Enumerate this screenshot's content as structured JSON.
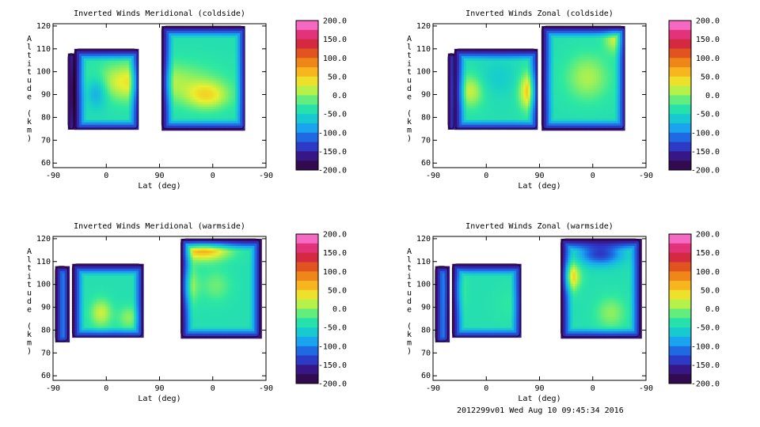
{
  "footer": "2012299v01 Wed Aug 10 09:45:34 2016",
  "chart_data": [
    {
      "type": "heatmap",
      "title": "Inverted Winds Meridional (coldside)",
      "xlabel": "Lat (deg)",
      "ylabel": "Altitude (km)",
      "x_ticks": [
        "-90",
        "0",
        "90",
        "0",
        "-90"
      ],
      "y_ticks": [
        60,
        70,
        80,
        90,
        100,
        110,
        120
      ],
      "ylim": [
        58,
        121
      ],
      "colorbar_ticks": [
        "200.0",
        "150.0",
        "100.0",
        "50.0",
        "0.0",
        "-50.0",
        "-100.0",
        "-150.0",
        "-200.0"
      ],
      "colorbar_range": [
        -200,
        200
      ],
      "blobs": [
        {
          "c": [
            0.09,
            92
          ],
          "w": [
            0.01,
            16
          ],
          "v": -170
        },
        {
          "c": [
            0.34,
            96
          ],
          "w": [
            0.17,
            8
          ],
          "v": 60
        },
        {
          "c": [
            0.56,
            96
          ],
          "w": [
            0.22,
            9
          ],
          "v": 40
        },
        {
          "c": [
            0.72,
            90
          ],
          "w": [
            0.1,
            6
          ],
          "v": 70
        },
        {
          "c": [
            0.2,
            92
          ],
          "w": [
            0.05,
            7
          ],
          "v": -60
        }
      ],
      "regions": [
        {
          "x": [
            0.1,
            0.4
          ],
          "y": [
            75,
            110
          ]
        },
        {
          "x": [
            0.51,
            0.9
          ],
          "y": [
            75,
            120
          ]
        },
        {
          "x": [
            0.07,
            0.1
          ],
          "y": [
            75,
            108
          ]
        }
      ]
    },
    {
      "type": "heatmap",
      "title": "Inverted Winds Zonal (coldside)",
      "xlabel": "Lat (deg)",
      "ylabel": "Altitude (km)",
      "x_ticks": [
        "-90",
        "0",
        "90",
        "0",
        "-90"
      ],
      "y_ticks": [
        60,
        70,
        80,
        90,
        100,
        110,
        120
      ],
      "ylim": [
        58,
        121
      ],
      "colorbar_ticks": [
        "200.0",
        "150.0",
        "100.0",
        "50.0",
        "0.0",
        "-50.0",
        "-100.0",
        "-150.0",
        "-200.0"
      ],
      "colorbar_range": [
        -200,
        200
      ],
      "blobs": [
        {
          "c": [
            0.17,
            92
          ],
          "w": [
            0.06,
            7
          ],
          "v": 60
        },
        {
          "c": [
            0.45,
            92
          ],
          "w": [
            0.05,
            8
          ],
          "v": 100
        },
        {
          "c": [
            0.72,
            98
          ],
          "w": [
            0.1,
            10
          ],
          "v": 50
        },
        {
          "c": [
            0.85,
            115
          ],
          "w": [
            0.05,
            6
          ],
          "v": 60
        },
        {
          "c": [
            0.3,
            98
          ],
          "w": [
            0.1,
            8
          ],
          "v": -20
        }
      ],
      "regions": [
        {
          "x": [
            0.1,
            0.49
          ],
          "y": [
            75,
            110
          ]
        },
        {
          "x": [
            0.51,
            0.9
          ],
          "y": [
            75,
            120
          ]
        },
        {
          "x": [
            0.07,
            0.1
          ],
          "y": [
            75,
            108
          ]
        }
      ]
    },
    {
      "type": "heatmap",
      "title": "Inverted Winds Meridional (warmside)",
      "xlabel": "Lat (deg)",
      "ylabel": "Altitude (km)",
      "x_ticks": [
        "-90",
        "0",
        "90",
        "0",
        "-90"
      ],
      "y_ticks": [
        60,
        70,
        80,
        90,
        100,
        110,
        120
      ],
      "ylim": [
        58,
        121
      ],
      "colorbar_ticks": [
        "200.0",
        "150.0",
        "100.0",
        "50.0",
        "0.0",
        "-50.0",
        "-100.0",
        "-150.0",
        "-200.0"
      ],
      "colorbar_range": [
        -200,
        200
      ],
      "blobs": [
        {
          "c": [
            0.7,
            116
          ],
          "w": [
            0.12,
            5
          ],
          "v": 110
        },
        {
          "c": [
            0.6,
            100
          ],
          "w": [
            0.06,
            8
          ],
          "v": 90
        },
        {
          "c": [
            0.35,
            86
          ],
          "w": [
            0.05,
            5
          ],
          "v": 40
        },
        {
          "c": [
            0.22,
            88
          ],
          "w": [
            0.05,
            6
          ],
          "v": 60
        },
        {
          "c": [
            0.76,
            100
          ],
          "w": [
            0.07,
            7
          ],
          "v": 30
        }
      ],
      "regions": [
        {
          "x": [
            0.01,
            0.07
          ],
          "y": [
            75,
            108
          ]
        },
        {
          "x": [
            0.09,
            0.42
          ],
          "y": [
            77,
            109
          ]
        },
        {
          "x": [
            0.6,
            0.97
          ],
          "y": [
            77,
            120
          ]
        }
      ]
    },
    {
      "type": "heatmap",
      "title": "Inverted Winds Zonal (warmside)",
      "xlabel": "Lat (deg)",
      "ylabel": "Altitude (km)",
      "x_ticks": [
        "-90",
        "0",
        "90",
        "0",
        "-90"
      ],
      "y_ticks": [
        60,
        70,
        80,
        90,
        100,
        110,
        120
      ],
      "ylim": [
        58,
        121
      ],
      "colorbar_ticks": [
        "200.0",
        "150.0",
        "100.0",
        "50.0",
        "0.0",
        "-50.0",
        "-100.0",
        "-150.0",
        "-200.0"
      ],
      "colorbar_range": [
        -200,
        200
      ],
      "blobs": [
        {
          "c": [
            0.1,
            98
          ],
          "w": [
            0.04,
            8
          ],
          "v": 40
        },
        {
          "c": [
            0.63,
            104
          ],
          "w": [
            0.05,
            6
          ],
          "v": 110
        },
        {
          "c": [
            0.37,
            92
          ],
          "w": [
            0.09,
            8
          ],
          "v": 10
        },
        {
          "c": [
            0.83,
            88
          ],
          "w": [
            0.07,
            7
          ],
          "v": 40
        },
        {
          "c": [
            0.78,
            114
          ],
          "w": [
            0.1,
            5
          ],
          "v": -100
        }
      ],
      "regions": [
        {
          "x": [
            0.01,
            0.07
          ],
          "y": [
            75,
            108
          ]
        },
        {
          "x": [
            0.09,
            0.41
          ],
          "y": [
            77,
            109
          ]
        },
        {
          "x": [
            0.6,
            0.97
          ],
          "y": [
            77,
            120
          ]
        }
      ]
    }
  ]
}
